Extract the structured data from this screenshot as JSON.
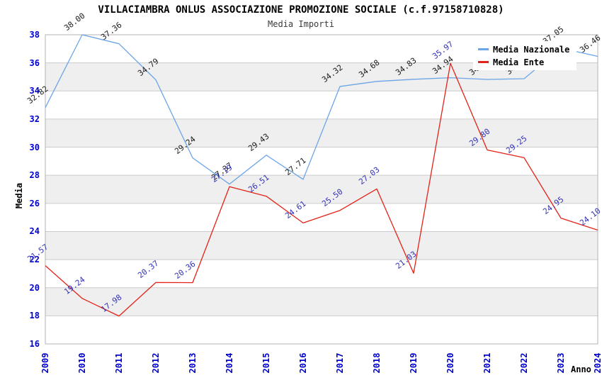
{
  "page": {
    "background": "#ffffff"
  },
  "chart_data": {
    "type": "line",
    "title": "VILLACIAMBRA ONLUS ASSOCIAZIONE PROMOZIONE SOCIALE (c.f.97158710828)",
    "subtitle": "Media Importi",
    "xlabel": "Anno",
    "ylabel": "Media",
    "x": [
      2009,
      2010,
      2011,
      2012,
      2013,
      2014,
      2015,
      2016,
      2017,
      2018,
      2019,
      2020,
      2021,
      2022,
      2023,
      2024
    ],
    "yticks": [
      16,
      18,
      20,
      22,
      24,
      26,
      28,
      30,
      32,
      34,
      36,
      38
    ],
    "ylim": [
      16,
      38
    ],
    "grid": "horizontal gridlines with alternating gray bands",
    "legend_position": "top-right",
    "series": [
      {
        "name": "Media Nazionale",
        "color": "#6BA4E7",
        "label_color": "#1a1a1a",
        "values": [
          32.82,
          38.0,
          37.36,
          34.79,
          29.24,
          27.37,
          29.43,
          27.71,
          34.32,
          34.68,
          34.83,
          34.94,
          34.82,
          34.87,
          37.05,
          36.46
        ],
        "note_hidden_labels": "2021 and 2022 labels are covered by the legend box"
      },
      {
        "name": "Media Ente",
        "color": "#E42217",
        "label_color": "#3232B4",
        "values": [
          21.57,
          19.24,
          17.98,
          20.37,
          20.36,
          27.19,
          26.51,
          24.61,
          25.5,
          27.03,
          21.03,
          35.97,
          29.8,
          29.25,
          24.95,
          24.1
        ]
      }
    ],
    "colors": {
      "tick_label": "#0000cc",
      "gridline": "#cccccc",
      "band_gray": "#efefef",
      "plot_border": "#b3b3b3",
      "title": "#000000",
      "subtitle": "#3a3a3a"
    }
  }
}
